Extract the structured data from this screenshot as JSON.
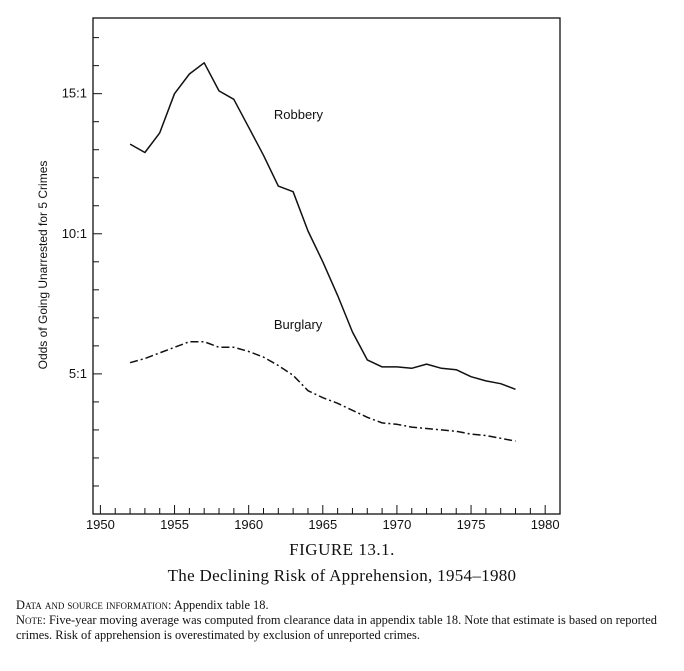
{
  "chart_data": {
    "type": "line",
    "title": "The Declining Risk of Apprehension, 1954–1980",
    "figure_number": "FIGURE 13.1.",
    "xlabel": "",
    "ylabel": "Odds of Going Unarrested for 5 Crimes",
    "xlim": [
      1949.5,
      1981
    ],
    "ylim": [
      0,
      17.7
    ],
    "x_ticks": [
      1950,
      1955,
      1960,
      1965,
      1970,
      1975,
      1980
    ],
    "x_tick_labels": [
      "1950",
      "1955",
      "1960",
      "1965",
      "1970",
      "1975",
      "1980"
    ],
    "y_ticks": [
      5,
      10,
      15
    ],
    "y_tick_labels": [
      "5:1",
      "10:1",
      "15:1"
    ],
    "grid": false,
    "series": [
      {
        "name": "Robbery",
        "style": "solid",
        "x": [
          1952,
          1953,
          1954,
          1955,
          1956,
          1957,
          1958,
          1959,
          1960,
          1961,
          1962,
          1963,
          1964,
          1965,
          1966,
          1967,
          1968,
          1969,
          1970,
          1971,
          1972,
          1973,
          1974,
          1975,
          1976,
          1977,
          1978
        ],
        "values": [
          13.2,
          12.9,
          13.6,
          15.0,
          15.7,
          16.1,
          15.1,
          14.8,
          13.8,
          12.8,
          11.7,
          11.5,
          10.1,
          9.0,
          7.8,
          6.5,
          5.5,
          5.25,
          5.25,
          5.2,
          5.35,
          5.2,
          5.15,
          4.9,
          4.75,
          4.65,
          4.45
        ]
      },
      {
        "name": "Burglary",
        "style": "dash-dot",
        "x": [
          1952,
          1953,
          1954,
          1955,
          1956,
          1957,
          1958,
          1959,
          1960,
          1961,
          1962,
          1963,
          1964,
          1965,
          1966,
          1967,
          1968,
          1969,
          1970,
          1971,
          1972,
          1973,
          1974,
          1975,
          1976,
          1977,
          1978
        ],
        "values": [
          5.4,
          5.55,
          5.75,
          5.95,
          6.15,
          6.15,
          5.95,
          5.95,
          5.8,
          5.6,
          5.3,
          4.95,
          4.4,
          4.15,
          3.95,
          3.7,
          3.45,
          3.25,
          3.2,
          3.1,
          3.05,
          3.0,
          2.95,
          2.85,
          2.8,
          2.7,
          2.6
        ]
      }
    ],
    "annotations": [
      {
        "text": "Robbery",
        "x": 1961.7,
        "y": 14.1
      },
      {
        "text": "Burglary",
        "x": 1961.7,
        "y": 6.6
      }
    ]
  },
  "caption": {
    "figure_number": "FIGURE 13.1.",
    "title": "The Declining Risk of Apprehension, 1954–1980",
    "source_label": "Data and source information:",
    "source_text": "Appendix table 18.",
    "note_label": "Note:",
    "note_text": "Five-year moving average was computed from clearance data in appendix table 18. Note that estimate is based on reported crimes. Risk of apprehension is overestimated by exclusion of unreported crimes."
  },
  "colors": {
    "ink": "#111111",
    "background": "#ffffff"
  }
}
